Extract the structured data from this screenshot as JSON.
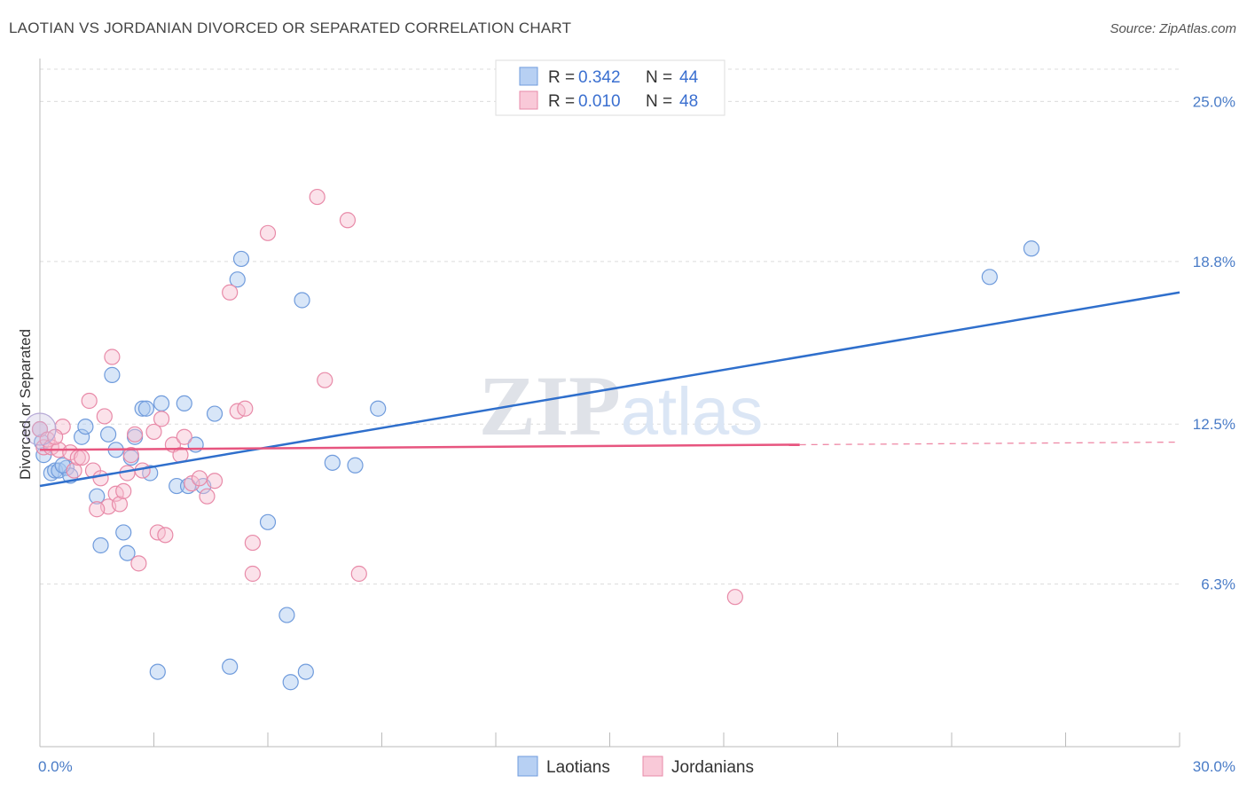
{
  "header": {
    "title": "LAOTIAN VS JORDANIAN DIVORCED OR SEPARATED CORRELATION CHART",
    "source": "Source: ZipAtlas.com"
  },
  "chart_data": {
    "type": "scatter",
    "title": "LAOTIAN VS JORDANIAN DIVORCED OR SEPARATED CORRELATION CHART",
    "ylabel": "Divorced or Separated",
    "xlabel": "",
    "xlim": [
      0,
      30
    ],
    "ylim": [
      0,
      26.25
    ],
    "x_tick_labels": [
      {
        "value": 0,
        "label": "0.0%"
      },
      {
        "value": 30,
        "label": "30.0%"
      }
    ],
    "y_tick_labels": [
      {
        "value": 6.3,
        "label": "6.3%"
      },
      {
        "value": 12.5,
        "label": "12.5%"
      },
      {
        "value": 18.8,
        "label": "18.8%"
      },
      {
        "value": 25.0,
        "label": "25.0%"
      }
    ],
    "grid": true,
    "legend_position": "top-center",
    "watermark": "ZIPatlas",
    "stats": [
      {
        "r_label": "R = ",
        "r_value": "0.342",
        "n_label": "N = ",
        "n_value": "44"
      },
      {
        "r_label": "R = ",
        "r_value": "0.010",
        "n_label": "N = ",
        "n_value": "48"
      }
    ],
    "series": [
      {
        "name": "Laotians",
        "color": "#6f9bdc",
        "fill": "#a9c7f0",
        "line_color": "#2f6fcc",
        "trend": {
          "x": [
            0,
            30
          ],
          "y": [
            10.1,
            17.6
          ],
          "dashed_from": null
        },
        "points": [
          [
            0.0,
            12.3
          ],
          [
            0.1,
            11.3
          ],
          [
            0.3,
            10.6
          ],
          [
            0.4,
            10.7
          ],
          [
            0.5,
            10.7
          ],
          [
            0.7,
            10.8
          ],
          [
            0.8,
            10.5
          ],
          [
            1.1,
            12.0
          ],
          [
            1.2,
            12.4
          ],
          [
            1.5,
            9.7
          ],
          [
            1.6,
            7.8
          ],
          [
            1.8,
            12.1
          ],
          [
            1.9,
            14.4
          ],
          [
            2.0,
            11.5
          ],
          [
            2.2,
            8.3
          ],
          [
            2.3,
            7.5
          ],
          [
            2.4,
            11.2
          ],
          [
            2.5,
            12.0
          ],
          [
            2.7,
            13.1
          ],
          [
            2.8,
            13.1
          ],
          [
            2.9,
            10.6
          ],
          [
            3.1,
            2.9
          ],
          [
            3.2,
            13.3
          ],
          [
            3.6,
            10.1
          ],
          [
            3.8,
            13.3
          ],
          [
            3.9,
            10.1
          ],
          [
            4.1,
            11.7
          ],
          [
            4.3,
            10.1
          ],
          [
            4.6,
            12.9
          ],
          [
            5.0,
            3.1
          ],
          [
            5.2,
            18.1
          ],
          [
            5.3,
            18.9
          ],
          [
            6.0,
            8.7
          ],
          [
            6.5,
            5.1
          ],
          [
            6.6,
            2.5
          ],
          [
            6.9,
            17.3
          ],
          [
            7.0,
            2.9
          ],
          [
            7.7,
            11.0
          ],
          [
            8.3,
            10.9
          ],
          [
            8.9,
            13.1
          ],
          [
            25.0,
            18.2
          ],
          [
            26.1,
            19.3
          ],
          [
            0.05,
            11.8
          ],
          [
            0.6,
            10.9
          ]
        ]
      },
      {
        "name": "Jordanians",
        "color": "#e88aa8",
        "fill": "#f7bfd0",
        "line_color": "#e7557f",
        "trend": {
          "x": [
            0,
            20
          ],
          "y": [
            11.5,
            11.7
          ],
          "dashed_from": 20,
          "dashed_to": 30
        },
        "points": [
          [
            0.0,
            12.3
          ],
          [
            0.1,
            11.6
          ],
          [
            0.2,
            11.9
          ],
          [
            0.3,
            11.6
          ],
          [
            0.5,
            11.5
          ],
          [
            0.6,
            12.4
          ],
          [
            0.8,
            11.4
          ],
          [
            0.9,
            10.7
          ],
          [
            1.0,
            11.2
          ],
          [
            1.1,
            11.2
          ],
          [
            1.3,
            13.4
          ],
          [
            1.4,
            10.7
          ],
          [
            1.6,
            10.4
          ],
          [
            1.7,
            12.8
          ],
          [
            1.8,
            9.3
          ],
          [
            1.9,
            15.1
          ],
          [
            2.0,
            9.8
          ],
          [
            2.1,
            9.4
          ],
          [
            2.3,
            10.6
          ],
          [
            2.4,
            11.3
          ],
          [
            2.5,
            12.1
          ],
          [
            2.6,
            7.1
          ],
          [
            2.7,
            10.7
          ],
          [
            3.1,
            8.3
          ],
          [
            3.2,
            12.7
          ],
          [
            3.3,
            8.2
          ],
          [
            3.5,
            11.7
          ],
          [
            3.7,
            11.3
          ],
          [
            3.8,
            12.0
          ],
          [
            4.0,
            10.2
          ],
          [
            4.2,
            10.4
          ],
          [
            4.4,
            9.7
          ],
          [
            5.0,
            17.6
          ],
          [
            5.2,
            13.0
          ],
          [
            5.4,
            13.1
          ],
          [
            5.6,
            7.9
          ],
          [
            5.6,
            6.7
          ],
          [
            6.0,
            19.9
          ],
          [
            7.3,
            21.3
          ],
          [
            7.5,
            14.2
          ],
          [
            8.1,
            20.4
          ],
          [
            8.4,
            6.7
          ],
          [
            18.3,
            5.8
          ],
          [
            0.4,
            12.0
          ],
          [
            1.5,
            9.2
          ],
          [
            2.2,
            9.9
          ],
          [
            3.0,
            12.2
          ],
          [
            4.6,
            10.3
          ]
        ]
      }
    ]
  },
  "legend": {
    "items": [
      {
        "name": "Laotians"
      },
      {
        "name": "Jordanians"
      }
    ]
  }
}
